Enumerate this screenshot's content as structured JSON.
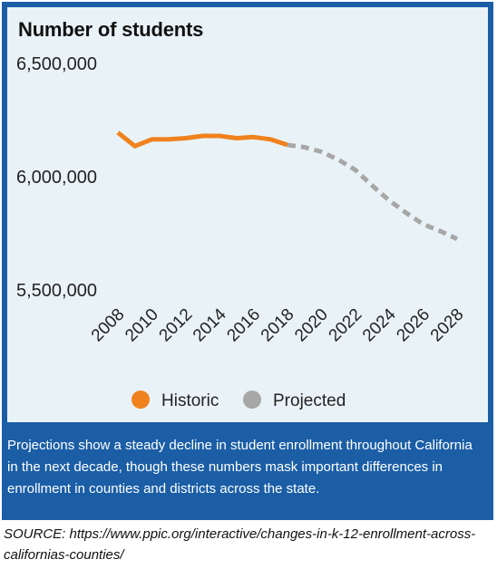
{
  "chart_data": {
    "type": "line",
    "title": "Number of students",
    "xlabel": "",
    "ylabel": "",
    "x": [
      2008,
      2009,
      2010,
      2011,
      2012,
      2013,
      2014,
      2015,
      2016,
      2017,
      2018,
      2019,
      2020,
      2021,
      2022,
      2023,
      2024,
      2025,
      2026,
      2027,
      2028
    ],
    "x_ticks": [
      "2008",
      "2010",
      "2012",
      "2014",
      "2016",
      "2018",
      "2020",
      "2022",
      "2024",
      "2026",
      "2028"
    ],
    "y_ticks": [
      "6,500,000",
      "6,000,000",
      "5,500,000"
    ],
    "y_tick_values": [
      6500000,
      6000000,
      5500000
    ],
    "ylim": [
      5500000,
      6500000
    ],
    "xlim": [
      2008,
      2028
    ],
    "series": [
      {
        "name": "Historic",
        "style": "solid",
        "color": "#f0821e",
        "x": [
          2008,
          2009,
          2010,
          2011,
          2012,
          2013,
          2014,
          2015,
          2016,
          2017,
          2018
        ],
        "values": [
          6195000,
          6135000,
          6165000,
          6165000,
          6170000,
          6180000,
          6180000,
          6170000,
          6175000,
          6165000,
          6140000
        ]
      },
      {
        "name": "Projected",
        "style": "dashed",
        "color": "#a7a7a7",
        "x": [
          2018,
          2019,
          2020,
          2021,
          2022,
          2023,
          2024,
          2025,
          2026,
          2027,
          2028
        ],
        "values": [
          6140000,
          6130000,
          6110000,
          6075000,
          6030000,
          5960000,
          5895000,
          5840000,
          5790000,
          5760000,
          5725000
        ]
      }
    ],
    "legend": {
      "placement": "bottom-center",
      "items": [
        {
          "label": "Historic",
          "color": "#f0821e"
        },
        {
          "label": "Projected",
          "color": "#a7a7a7"
        }
      ]
    },
    "grid": false
  },
  "caption": "Projections show a steady decline in student enrollment throughout California in the next decade, though these numbers mask important differences in enrollment in counties and districts across the state.",
  "source": "SOURCE: https://www.ppic.org/interactive/changes-in-k-12-enrollment-across-californias-counties/",
  "colors": {
    "frame": "#1b5ea6",
    "panel": "#e9f3f7"
  }
}
